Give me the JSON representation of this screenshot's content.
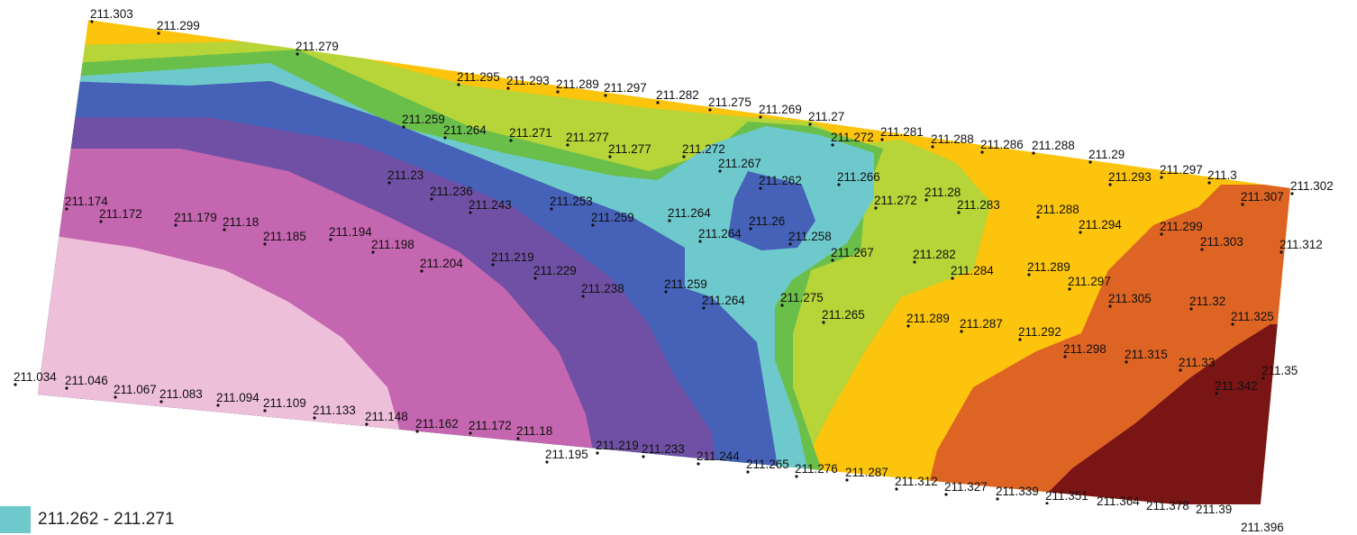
{
  "legend": {
    "label": "211.262 - 211.271",
    "swatch_color": "#6ec9cc"
  },
  "zone_colors": {
    "lowest": "#eebfdb",
    "low": "#c566b0",
    "mid_low": "#6f50a4",
    "mid": "#4561b8",
    "cyan": "#6ec9cc",
    "green": "#6abf4b",
    "yellow_green": "#b7d438",
    "yellow": "#fcc40c",
    "orange": "#de6424",
    "dark_red": "#7a1515"
  },
  "survey_points": [
    "211.303",
    "211.299",
    "211.279",
    "211.295",
    "211.293",
    "211.289",
    "211.297",
    "211.282",
    "211.275",
    "211.269",
    "211.27",
    "211.259",
    "211.264",
    "211.271",
    "211.277",
    "211.277",
    "211.272",
    "211.267",
    "211.272",
    "211.281",
    "211.288",
    "211.286",
    "211.288",
    "211.29",
    "211.293",
    "211.297",
    "211.3",
    "211.302",
    "211.307",
    "211.174",
    "211.172",
    "211.179",
    "211.18",
    "211.185",
    "211.194",
    "211.198",
    "211.204",
    "211.23",
    "211.236",
    "211.243",
    "211.253",
    "211.259",
    "211.264",
    "211.262",
    "211.266",
    "211.272",
    "211.28",
    "211.283",
    "211.288",
    "211.294",
    "211.299",
    "211.303",
    "211.312",
    "211.26",
    "211.264",
    "211.258",
    "211.267",
    "211.282",
    "211.284",
    "211.289",
    "211.297",
    "211.305",
    "211.32",
    "211.325",
    "211.219",
    "211.229",
    "211.238",
    "211.259",
    "211.264",
    "211.275",
    "211.265",
    "211.289",
    "211.287",
    "211.292",
    "211.298",
    "211.315",
    "211.33",
    "211.342",
    "211.35",
    "211.034",
    "211.046",
    "211.067",
    "211.083",
    "211.094",
    "211.109",
    "211.133",
    "211.148",
    "211.162",
    "211.172",
    "211.18",
    "211.195",
    "211.219",
    "211.233",
    "211.244",
    "211.265",
    "211.276",
    "211.287",
    "211.312",
    "211.327",
    "211.339",
    "211.351",
    "211.364",
    "211.378",
    "211.39",
    "211.396"
  ]
}
